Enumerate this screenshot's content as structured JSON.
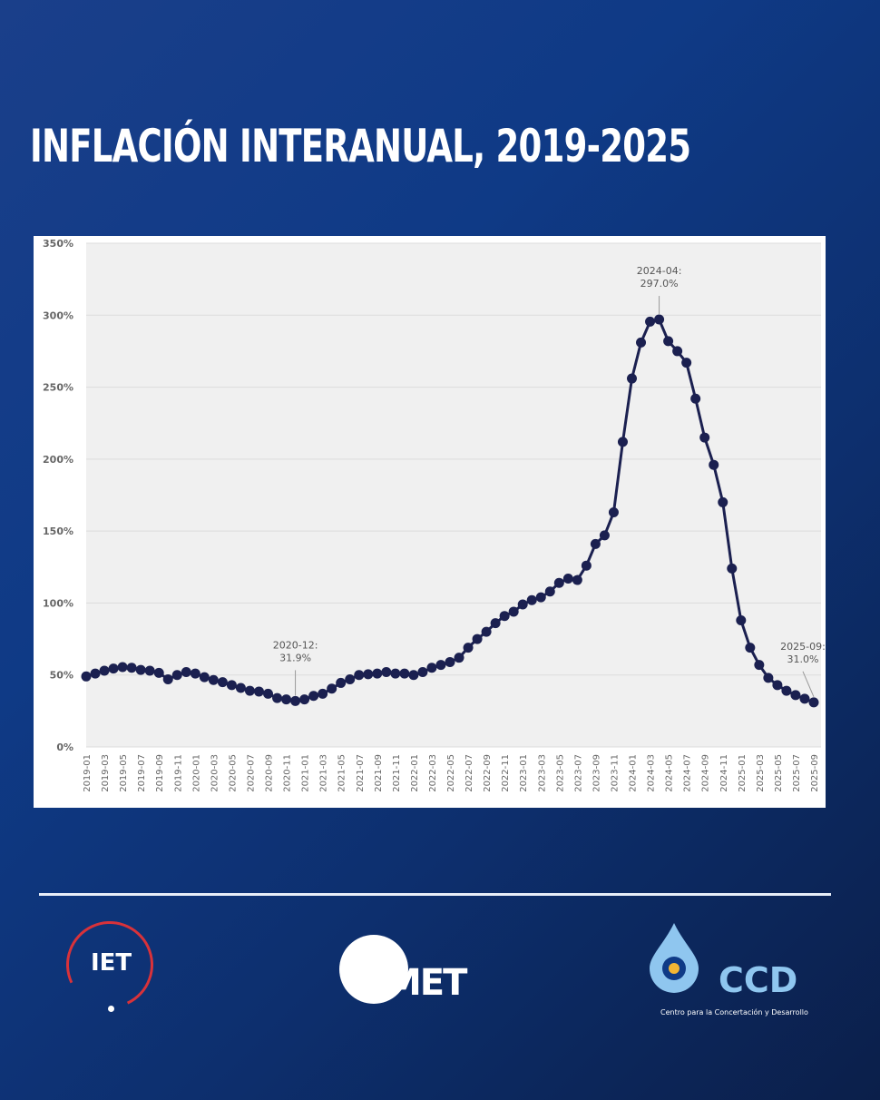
{
  "title": "INFLACIÓN INTERANUAL, 2019-2025",
  "colors": {
    "line": "#1b2050",
    "plot_bg": "#f0f0f0",
    "grid": "#dcdcdc",
    "background": "#0f3a86"
  },
  "chart_data": {
    "type": "line",
    "title": "INFLACIÓN INTERANUAL, 2019-2025",
    "xlabel": "",
    "ylabel": "",
    "ylim": [
      0,
      350
    ],
    "yticks": [
      "0%",
      "50%",
      "100%",
      "150%",
      "200%",
      "250%",
      "300%",
      "350%"
    ],
    "grid": "horizontal",
    "x": [
      "2019-01",
      "2019-02",
      "2019-03",
      "2019-04",
      "2019-05",
      "2019-06",
      "2019-07",
      "2019-08",
      "2019-09",
      "2019-10",
      "2019-11",
      "2019-12",
      "2020-01",
      "2020-02",
      "2020-03",
      "2020-04",
      "2020-05",
      "2020-06",
      "2020-07",
      "2020-08",
      "2020-09",
      "2020-10",
      "2020-11",
      "2020-12",
      "2021-01",
      "2021-02",
      "2021-03",
      "2021-04",
      "2021-05",
      "2021-06",
      "2021-07",
      "2021-08",
      "2021-09",
      "2021-10",
      "2021-11",
      "2021-12",
      "2022-01",
      "2022-02",
      "2022-03",
      "2022-04",
      "2022-05",
      "2022-06",
      "2022-07",
      "2022-08",
      "2022-09",
      "2022-10",
      "2022-11",
      "2022-12",
      "2023-01",
      "2023-02",
      "2023-03",
      "2023-04",
      "2023-05",
      "2023-06",
      "2023-07",
      "2023-08",
      "2023-09",
      "2023-10",
      "2023-11",
      "2023-12",
      "2024-01",
      "2024-02",
      "2024-03",
      "2024-04",
      "2024-05",
      "2024-06",
      "2024-07",
      "2024-08",
      "2024-09",
      "2024-10",
      "2024-11",
      "2024-12",
      "2025-01",
      "2025-02",
      "2025-03",
      "2025-04",
      "2025-05",
      "2025-06",
      "2025-07",
      "2025-08",
      "2025-09"
    ],
    "values": [
      49,
      51,
      53,
      54.5,
      55.5,
      55,
      53.5,
      53,
      51.5,
      47,
      50,
      52,
      51,
      48.5,
      46.5,
      45,
      43,
      41,
      39,
      38.5,
      37,
      34,
      33,
      31.9,
      33,
      35.5,
      37,
      40.5,
      44.5,
      47,
      50,
      50.5,
      51,
      52,
      51,
      51,
      50,
      52,
      55,
      57,
      59,
      62,
      69,
      75,
      80,
      86,
      91,
      94,
      99,
      102,
      104,
      108,
      114,
      117,
      116,
      126,
      141,
      147,
      163,
      212,
      256,
      281,
      295.5,
      297.0,
      282,
      275,
      267,
      242,
      215,
      196,
      170,
      124,
      88,
      69,
      57,
      48,
      43,
      39,
      36,
      33.5,
      31.0
    ],
    "annotations": [
      {
        "x": "2020-12",
        "line1": "2020-12:",
        "line2": "31.9%"
      },
      {
        "x": "2024-04",
        "line1": "2024-04:",
        "line2": "297.0%"
      },
      {
        "x": "2025-09",
        "line1": "2025-09:",
        "line2": "31.0%"
      }
    ]
  },
  "logos": {
    "iet": "IET",
    "umet": "MET",
    "ccd": "CCD",
    "ccd_sub": "Centro para la Concertación y Desarrollo"
  }
}
